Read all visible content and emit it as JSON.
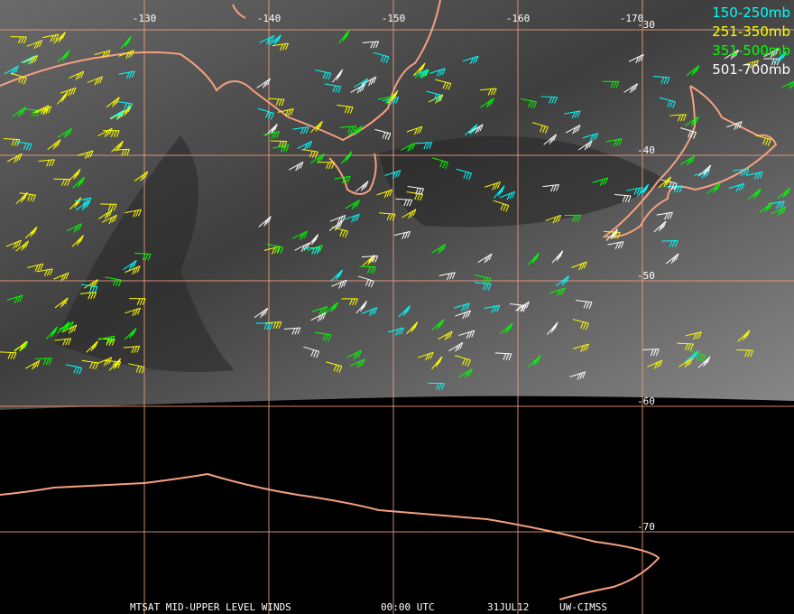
{
  "map": {
    "longitudes": [
      -130,
      -140,
      -150,
      -160,
      -170
    ],
    "latitudes": [
      -30,
      -40,
      -50,
      -60,
      -70
    ],
    "legend": [
      {
        "label": "150-250mb",
        "color": "#00ffff"
      },
      {
        "label": "251-350mb",
        "color": "#ffff00"
      },
      {
        "label": "351-500mb",
        "color": "#00ff00"
      },
      {
        "label": "501-700mb",
        "color": "#ffffff"
      }
    ],
    "footer": [
      "MTSAT MID-UPPER LEVEL WINDS",
      "00:00 UTC",
      "31JUL12",
      "UW-CIMSS"
    ]
  }
}
